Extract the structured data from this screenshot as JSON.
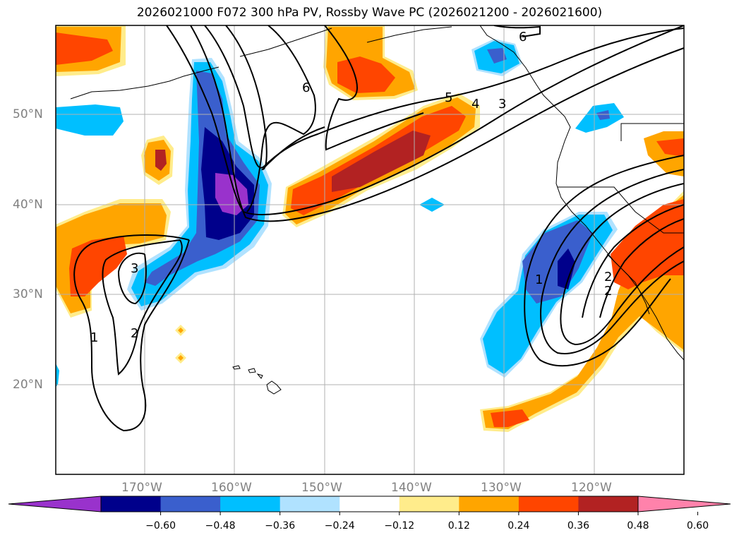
{
  "title": "2026021000 F072 300 hPa PV, Rossby Wave PC (2026021200 - 2026021600)",
  "map": {
    "latitude_labels": [
      "50°N",
      "40°N",
      "30°N",
      "20°N"
    ],
    "longitude_labels": [
      "170°W",
      "160°W",
      "150°W",
      "140°W",
      "130°W",
      "120°W"
    ],
    "contour_labels": [
      "6",
      "6",
      "5",
      "4",
      "3",
      "3",
      "2",
      "1",
      "1",
      "2",
      "2"
    ]
  },
  "colorbar": {
    "ticks": [
      "−0.60",
      "−0.48",
      "−0.36",
      "−0.24",
      "−0.12",
      "0.12",
      "0.24",
      "0.36",
      "0.48",
      "0.60"
    ],
    "colors": [
      "#9932cc",
      "#00008b",
      "#3a5fcd",
      "#00bfff",
      "#b0e2ff",
      "#ffffff",
      "#ffec8b",
      "#ffa500",
      "#ff4500",
      "#b22222",
      "#ff82ab"
    ]
  }
}
